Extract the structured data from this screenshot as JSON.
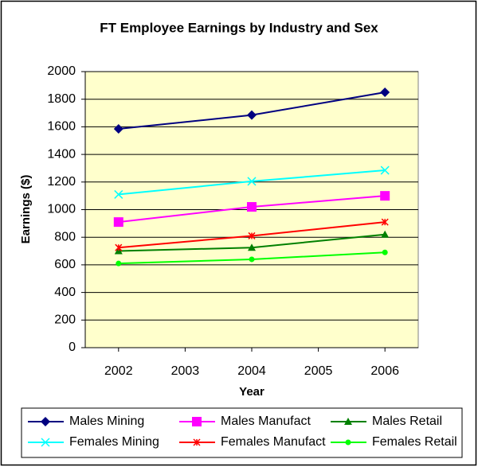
{
  "chart_data": {
    "type": "line",
    "title": "FT Employee Earnings by Industry and Sex",
    "x_label": "Year",
    "y_label": "Earnings ($)",
    "x": [
      2002,
      2004,
      2006
    ],
    "xlim": [
      2001.5,
      2006.5
    ],
    "xticks": [
      2002,
      2003,
      2004,
      2005,
      2006
    ],
    "ylim": [
      0,
      2000
    ],
    "yticks": [
      0,
      200,
      400,
      600,
      800,
      1000,
      1200,
      1400,
      1600,
      1800,
      2000
    ],
    "grid": true,
    "legend": "bottom",
    "series": [
      {
        "name": "Males Mining",
        "color": "#000080",
        "marker": "diamond",
        "values": [
          1585,
          1685,
          1850
        ]
      },
      {
        "name": "Males Manufact",
        "color": "#ff00ff",
        "marker": "square",
        "values": [
          910,
          1020,
          1100
        ]
      },
      {
        "name": "Males Retail",
        "color": "#008000",
        "marker": "triangle",
        "values": [
          700,
          725,
          820
        ]
      },
      {
        "name": "Females Mining",
        "color": "#00ffff",
        "marker": "x",
        "values": [
          1110,
          1205,
          1285
        ]
      },
      {
        "name": "Females Manufact",
        "color": "#ff0000",
        "marker": "star",
        "values": [
          725,
          810,
          910
        ]
      },
      {
        "name": "Females Retail",
        "color": "#00ff00",
        "marker": "circle",
        "values": [
          610,
          640,
          690
        ]
      }
    ]
  }
}
